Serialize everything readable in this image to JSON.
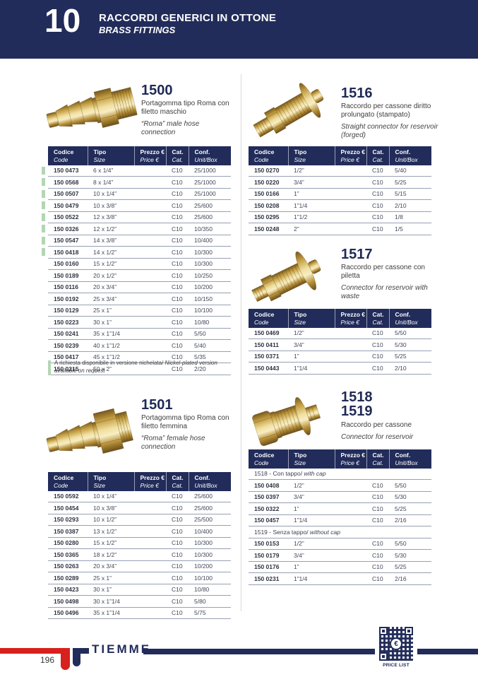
{
  "colors": {
    "navy": "#222c5a",
    "red": "#d8201d",
    "green_marker": "#b3d6b3"
  },
  "header": {
    "chapter_number": "10",
    "title_it": "RACCORDI GENERICI IN OTTONE",
    "title_en": "BRASS FITTINGS"
  },
  "columns": {
    "codice_it": "Codice",
    "codice_en": "Code",
    "tipo_it": "Tipo",
    "tipo_en": "Size",
    "prezzo_it": "Prezzo €",
    "prezzo_en": "Price €",
    "cat_it": "Cat.",
    "cat_en": "Cat.",
    "conf_it": "Conf.",
    "conf_en": "Unit/Box"
  },
  "note": {
    "text_it": "A richiesta disponibile in versione nichelata/",
    "text_en": "Nickel-plated version available on request"
  },
  "products": [
    {
      "title": "1500",
      "desc_it": "Portagomma tipo Roma con filetto maschio",
      "desc_en": "“Roma” male hose connection",
      "rows": [
        {
          "code": "150 0473",
          "size": "6 x 1/4”",
          "price": "",
          "cat": "C10",
          "conf": "25/1000",
          "green": true
        },
        {
          "code": "150 0568",
          "size": "8 x 1/4”",
          "price": "",
          "cat": "C10",
          "conf": "25/1000",
          "green": true
        },
        {
          "code": "150 0507",
          "size": "10 x 1/4”",
          "price": "",
          "cat": "C10",
          "conf": "25/1000",
          "green": true
        },
        {
          "code": "150 0479",
          "size": "10 x 3/8”",
          "price": "",
          "cat": "C10",
          "conf": "25/600",
          "green": true
        },
        {
          "code": "150 0522",
          "size": "12 x 3/8”",
          "price": "",
          "cat": "C10",
          "conf": "25/600",
          "green": true
        },
        {
          "code": "150 0326",
          "size": "12 x 1/2”",
          "price": "",
          "cat": "C10",
          "conf": "10/350",
          "green": true
        },
        {
          "code": "150 0547",
          "size": "14 x 3/8”",
          "price": "",
          "cat": "C10",
          "conf": "10/400",
          "green": true
        },
        {
          "code": "150 0418",
          "size": "14 x 1/2”",
          "price": "",
          "cat": "C10",
          "conf": "10/300",
          "green": true
        },
        {
          "code": "150 0160",
          "size": "15 x 1/2”",
          "price": "",
          "cat": "C10",
          "conf": "10/300"
        },
        {
          "code": "150 0189",
          "size": "20 x 1/2”",
          "price": "",
          "cat": "C10",
          "conf": "10/250"
        },
        {
          "code": "150 0116",
          "size": "20 x 3/4”",
          "price": "",
          "cat": "C10",
          "conf": "10/200"
        },
        {
          "code": "150 0192",
          "size": "25 x 3/4”",
          "price": "",
          "cat": "C10",
          "conf": "10/150"
        },
        {
          "code": "150 0129",
          "size": "25 x 1”",
          "price": "",
          "cat": "C10",
          "conf": "10/100"
        },
        {
          "code": "150 0223",
          "size": "30 x 1”",
          "price": "",
          "cat": "C10",
          "conf": "10/80"
        },
        {
          "code": "150 0241",
          "size": "35 x 1”1/4",
          "price": "",
          "cat": "C10",
          "conf": "5/50"
        },
        {
          "code": "150 0239",
          "size": "40 x 1”1/2",
          "price": "",
          "cat": "C10",
          "conf": "5/40"
        },
        {
          "code": "150 0417",
          "size": "45 x 1”1/2",
          "price": "",
          "cat": "C10",
          "conf": "5/35"
        },
        {
          "code": "150 0215",
          "size": "50 x 2”",
          "price": "",
          "cat": "C10",
          "conf": "2/20"
        }
      ]
    },
    {
      "title": "1501",
      "desc_it": "Portagomma tipo Roma con filetto femmina",
      "desc_en": "“Roma” female hose connection",
      "rows": [
        {
          "code": "150 0592",
          "size": "10 x 1/4”",
          "price": "",
          "cat": "C10",
          "conf": "25/600"
        },
        {
          "code": "150 0454",
          "size": "10 x 3/8”",
          "price": "",
          "cat": "C10",
          "conf": "25/600"
        },
        {
          "code": "150 0293",
          "size": "10 x 1/2”",
          "price": "",
          "cat": "C10",
          "conf": "25/500"
        },
        {
          "code": "150 0387",
          "size": "13 x 1/2”",
          "price": "",
          "cat": "C10",
          "conf": "10/400"
        },
        {
          "code": "150 0280",
          "size": "15 x 1/2”",
          "price": "",
          "cat": "C10",
          "conf": "10/300"
        },
        {
          "code": "150 0365",
          "size": "18 x 1/2”",
          "price": "",
          "cat": "C10",
          "conf": "10/300"
        },
        {
          "code": "150 0263",
          "size": "20 x 3/4”",
          "price": "",
          "cat": "C10",
          "conf": "10/200"
        },
        {
          "code": "150 0289",
          "size": "25 x 1”",
          "price": "",
          "cat": "C10",
          "conf": "10/100"
        },
        {
          "code": "150 0423",
          "size": "30 x 1”",
          "price": "",
          "cat": "C10",
          "conf": "10/80"
        },
        {
          "code": "150 0498",
          "size": "30 x 1”1/4",
          "price": "",
          "cat": "C10",
          "conf": "5/80"
        },
        {
          "code": "150 0496",
          "size": "35 x 1”1/4",
          "price": "",
          "cat": "C10",
          "conf": "5/75"
        }
      ]
    },
    {
      "title": "1516",
      "desc_it": "Raccordo per cassone diritto prolungato (stampato)",
      "desc_en": "Straight connector for reservoir (forged)",
      "rows": [
        {
          "code": "150 0270",
          "size": "1/2”",
          "price": "",
          "cat": "C10",
          "conf": "5/40"
        },
        {
          "code": "150 0220",
          "size": "3/4”",
          "price": "",
          "cat": "C10",
          "conf": "5/25"
        },
        {
          "code": "150 0166",
          "size": "1”",
          "price": "",
          "cat": "C10",
          "conf": "5/15"
        },
        {
          "code": "150 0208",
          "size": "1”1/4",
          "price": "",
          "cat": "C10",
          "conf": "2/10"
        },
        {
          "code": "150 0295",
          "size": "1”1/2",
          "price": "",
          "cat": "C10",
          "conf": "1/8"
        },
        {
          "code": "150 0248",
          "size": "2”",
          "price": "",
          "cat": "C10",
          "conf": "1/5"
        }
      ]
    },
    {
      "title": "1517",
      "desc_it": "Raccordo per cassone con piletta",
      "desc_en": "Connector for reservoir with waste",
      "rows": [
        {
          "code": "150 0469",
          "size": "1/2”",
          "price": "",
          "cat": "C10",
          "conf": "5/50"
        },
        {
          "code": "150 0411",
          "size": "3/4”",
          "price": "",
          "cat": "C10",
          "conf": "5/30"
        },
        {
          "code": "150 0371",
          "size": "1”",
          "price": "",
          "cat": "C10",
          "conf": "5/25"
        },
        {
          "code": "150 0443",
          "size": "1”1/4",
          "price": "",
          "cat": "C10",
          "conf": "2/10"
        }
      ]
    },
    {
      "title": "1518",
      "title2": "1519",
      "desc_it": "Raccordo per cassone",
      "desc_en": "Connector for reservoir",
      "rows": [
        {
          "subheader_it": "1518 - Con tappo/",
          "subheader_en": "with cap"
        },
        {
          "code": "150 0408",
          "size": "1/2”",
          "price": "",
          "cat": "C10",
          "conf": "5/50"
        },
        {
          "code": "150 0397",
          "size": "3/4”",
          "price": "",
          "cat": "C10",
          "conf": "5/30"
        },
        {
          "code": "150 0322",
          "size": "1”",
          "price": "",
          "cat": "C10",
          "conf": "5/25"
        },
        {
          "code": "150 0457",
          "size": "1”1/4",
          "price": "",
          "cat": "C10",
          "conf": "2/16"
        },
        {
          "subheader_it": "1519 - Senza tappo/",
          "subheader_en": "without cap"
        },
        {
          "code": "150 0153",
          "size": "1/2”",
          "price": "",
          "cat": "C10",
          "conf": "5/50"
        },
        {
          "code": "150 0179",
          "size": "3/4”",
          "price": "",
          "cat": "C10",
          "conf": "5/30"
        },
        {
          "code": "150 0176",
          "size": "1”",
          "price": "",
          "cat": "C10",
          "conf": "5/25"
        },
        {
          "code": "150 0231",
          "size": "1”1/4",
          "price": "",
          "cat": "C10",
          "conf": "2/16"
        }
      ]
    }
  ],
  "footer": {
    "page_number": "196",
    "brand": "TIEMME",
    "qr_label": "PRICE LIST",
    "qr_symbol": "€"
  }
}
